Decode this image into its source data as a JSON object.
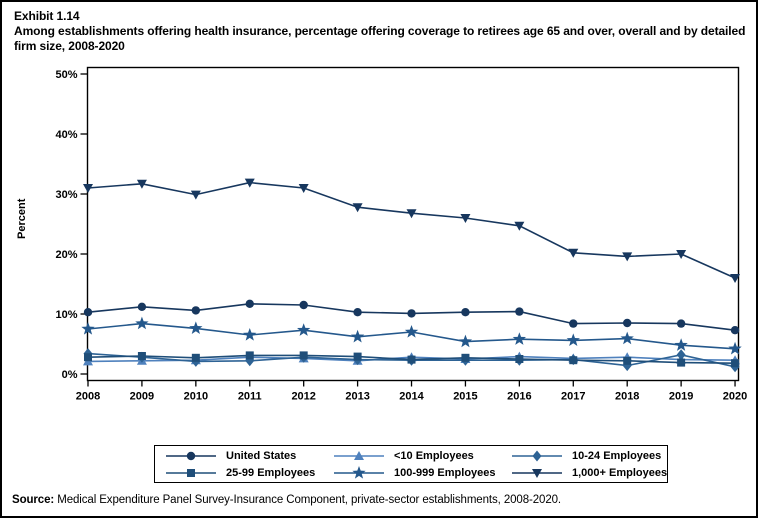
{
  "exhibit": {
    "number": "Exhibit 1.14",
    "title": "Among establishments offering health insurance, percentage offering coverage to retirees age 65 and over, overall and by detailed firm size, 2008-2020"
  },
  "source": {
    "label": "Source:",
    "text": " Medical Expenditure Panel Survey-Insurance Component, private-sector establishments, 2008-2020."
  },
  "chart_data": {
    "type": "line",
    "title": "Among establishments offering health insurance, percentage offering coverage to retirees age 65 and over, overall and by detailed firm size, 2008-2020",
    "xlabel": "",
    "ylabel": "Percent",
    "ylim": [
      0,
      50
    ],
    "yticks": [
      0,
      10,
      20,
      30,
      40,
      50
    ],
    "ytick_suffix": "%",
    "grid": false,
    "legend_position": "bottom",
    "x": [
      2008,
      2009,
      2010,
      2011,
      2012,
      2013,
      2014,
      2015,
      2016,
      2017,
      2018,
      2019,
      2020
    ],
    "series": [
      {
        "name": "United States",
        "marker": "circle",
        "color": "#17375E",
        "values": [
          10.3,
          11.2,
          10.6,
          11.7,
          11.5,
          10.3,
          10.1,
          10.3,
          10.4,
          8.4,
          8.5,
          8.4,
          7.3
        ]
      },
      {
        "name": "<10 Employees",
        "marker": "triangle-up",
        "color": "#4F81BD",
        "values": [
          2.1,
          2.2,
          2.3,
          2.8,
          2.6,
          2.2,
          2.8,
          2.5,
          2.9,
          2.6,
          2.8,
          2.4,
          2.3
        ]
      },
      {
        "name": "10-24 Employees",
        "marker": "diamond",
        "color": "#2E6395",
        "values": [
          3.4,
          2.8,
          2.1,
          2.2,
          2.8,
          2.4,
          2.3,
          2.3,
          2.3,
          2.4,
          1.4,
          3.2,
          1.2
        ]
      },
      {
        "name": "25-99 Employees",
        "marker": "square",
        "color": "#1F4E79",
        "values": [
          2.8,
          3.0,
          2.7,
          3.1,
          3.1,
          2.9,
          2.4,
          2.7,
          2.5,
          2.3,
          2.2,
          1.9,
          1.8
        ]
      },
      {
        "name": "100-999 Employees",
        "marker": "star",
        "color": "#24588C",
        "values": [
          7.5,
          8.4,
          7.6,
          6.5,
          7.3,
          6.2,
          7.0,
          5.4,
          5.8,
          5.6,
          5.9,
          4.8,
          4.2
        ]
      },
      {
        "name": "1,000+ Employees",
        "marker": "triangle-down",
        "color": "#17375E",
        "values": [
          31.0,
          31.7,
          29.9,
          31.9,
          31.0,
          27.8,
          26.8,
          26.0,
          24.7,
          20.2,
          19.6,
          20.0,
          16.0
        ]
      }
    ]
  }
}
